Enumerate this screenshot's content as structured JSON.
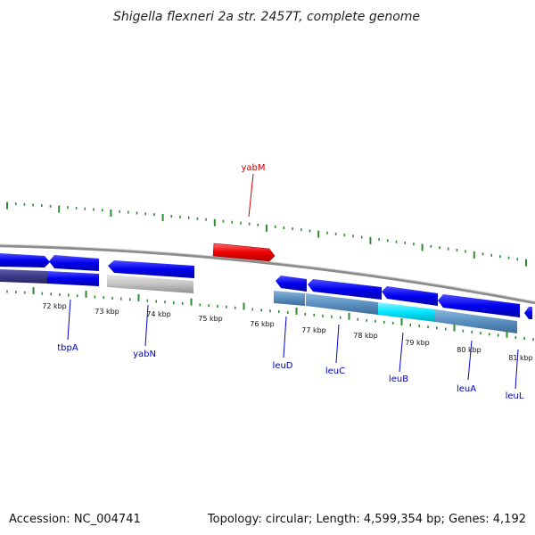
{
  "title": "Shigella flexneri 2a str. 2457T, complete genome",
  "footer": {
    "accession": "Accession: NC_004741",
    "summary": "Topology: circular; Length: 4,599,354 bp; Genes: 4,192"
  },
  "colors": {
    "backbone": "#8c8c8c",
    "tick": "#2e8b2e",
    "forward_gene": "#ff0000",
    "reverse_gene": "#0000ee",
    "cds_default": "#5a8fc0",
    "cds_grey": "#bdbdbd",
    "cds_dark": "#3b3b8a",
    "cds_cyan": "#00e5ff",
    "label_forward": "#cc0000",
    "label_reverse": "#0000cc"
  },
  "kbp_labels": [
    "72 kbp",
    "73 kbp",
    "74 kbp",
    "75 kbp",
    "76 kbp",
    "77 kbp",
    "78 kbp",
    "79 kbp",
    "80 kbp",
    "81 kbp"
  ],
  "gene_labels": [
    {
      "name": "yabM",
      "strand": "forward"
    },
    {
      "name": "tbpA",
      "strand": "reverse"
    },
    {
      "name": "yabN",
      "strand": "reverse"
    },
    {
      "name": "leuD",
      "strand": "reverse"
    },
    {
      "name": "leuC",
      "strand": "reverse"
    },
    {
      "name": "leuB",
      "strand": "reverse"
    },
    {
      "name": "leuA",
      "strand": "reverse"
    },
    {
      "name": "leuL",
      "strand": "reverse"
    }
  ]
}
